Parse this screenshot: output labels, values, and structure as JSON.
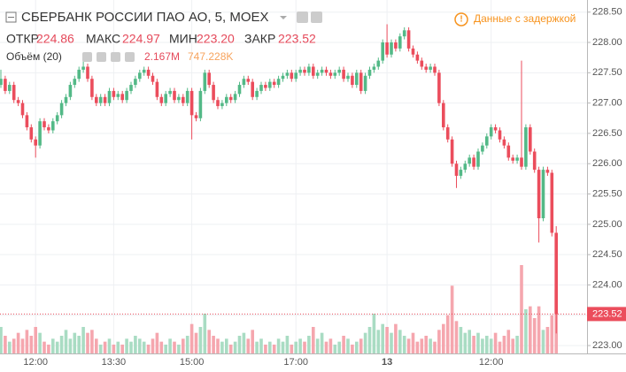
{
  "chart_data": {
    "type": "candlestick",
    "title": "СБЕРБАНК РОССИИ ПАО АО, 5, MOEX",
    "notice": "Данные с задержкой",
    "legend_labels": [
      "ОТКР",
      "МАКС",
      "МИН",
      "ЗАКР"
    ],
    "legend_values": [
      "224.86",
      "224.97",
      "223.20",
      "223.52"
    ],
    "volume_title": "Объём (20)",
    "volume_labels": [
      "2.167M",
      "747.228K"
    ],
    "up_color": "#53b987",
    "down_color": "#eb4d5c",
    "volume_up_color": "#a9dcc3",
    "volume_down_color": "#f5a6ae",
    "volume_ma_color": "#f7a35c",
    "ylim": [
      222.87,
      228.7
    ],
    "yticks": [
      {
        "value": 223,
        "label": "223.00"
      },
      {
        "value": 223.5,
        "label": "223.50"
      },
      {
        "value": 224,
        "label": "224.00"
      },
      {
        "value": 224.5,
        "label": "224.50"
      },
      {
        "value": 225,
        "label": "225.00"
      },
      {
        "value": 225.5,
        "label": "225.50"
      },
      {
        "value": 226,
        "label": "226.00"
      },
      {
        "value": 226.5,
        "label": "226.50"
      },
      {
        "value": 227,
        "label": "227.00"
      },
      {
        "value": 227.5,
        "label": "227.50"
      },
      {
        "value": 228,
        "label": "228.00"
      },
      {
        "value": 228.5,
        "label": "228.50"
      }
    ],
    "vlim": [
      0,
      12
    ],
    "grid": true,
    "categories": [
      null,
      null,
      null,
      null,
      null,
      null,
      null,
      null,
      "12:00",
      null,
      null,
      null,
      null,
      null,
      null,
      null,
      null,
      null,
      null,
      null,
      null,
      null,
      null,
      null,
      null,
      null,
      "13:30",
      null,
      null,
      null,
      null,
      null,
      null,
      null,
      null,
      null,
      null,
      null,
      null,
      null,
      null,
      null,
      null,
      null,
      "15:00",
      null,
      null,
      null,
      null,
      null,
      null,
      null,
      null,
      null,
      null,
      null,
      null,
      null,
      null,
      null,
      null,
      null,
      null,
      null,
      null,
      null,
      null,
      null,
      "17:00",
      null,
      null,
      null,
      null,
      null,
      null,
      null,
      null,
      null,
      null,
      null,
      null,
      null,
      null,
      null,
      null,
      null,
      null,
      null,
      null,
      "13",
      null,
      null,
      null,
      null,
      null,
      null,
      null,
      null,
      null,
      null,
      null,
      null,
      null,
      null,
      null,
      null,
      null,
      null,
      null,
      null,
      null,
      null,
      null,
      "12:00",
      null,
      null,
      null,
      null,
      null,
      null,
      null,
      null,
      null,
      null,
      null,
      null,
      null,
      null,
      null
    ],
    "open": [
      227.3,
      227.4,
      227.2,
      227.3,
      227.05,
      227,
      226.8,
      226.6,
      226.4,
      226.3,
      226.7,
      226.6,
      226.55,
      226.7,
      226.8,
      227,
      227.1,
      227.3,
      227.4,
      227.55,
      227.6,
      227.4,
      227.1,
      227,
      227.1,
      227,
      227.2,
      227.1,
      227.15,
      227.05,
      227.2,
      227.3,
      227.4,
      227.5,
      227.55,
      227.45,
      227.35,
      227.1,
      227,
      227.15,
      227.2,
      227.05,
      227.1,
      227,
      227.2,
      226.8,
      226.75,
      227.2,
      227.5,
      227.3,
      227.05,
      226.95,
      227,
      227.1,
      227.05,
      227.15,
      227.3,
      227.4,
      227.35,
      227.1,
      227.2,
      227.3,
      227.25,
      227.35,
      227.3,
      227.4,
      227.45,
      227.5,
      227.4,
      227.5,
      227.55,
      227.5,
      227.6,
      227.45,
      227.5,
      227.55,
      227.5,
      227.45,
      227.5,
      227.55,
      227.4,
      227.45,
      227.3,
      227.5,
      227.2,
      227.45,
      227.55,
      227.6,
      227.7,
      228,
      227.8,
      228,
      227.9,
      228.1,
      228.2,
      227.9,
      227.8,
      227.7,
      227.6,
      227.55,
      227.6,
      227.5,
      227,
      226.6,
      226.4,
      226,
      225.8,
      225.9,
      226,
      226.1,
      225.95,
      226.2,
      226.3,
      226.45,
      226.6,
      226.55,
      226.4,
      226.3,
      226.1,
      226.05,
      226.1,
      225.95,
      226.6,
      226.2,
      225.9,
      225.1,
      225.9,
      225.85,
      224.86
    ],
    "high": [
      227.55,
      227.45,
      227.35,
      227.35,
      227.1,
      227.05,
      226.85,
      226.65,
      226.45,
      226.75,
      226.75,
      226.65,
      226.75,
      226.85,
      227.05,
      227.15,
      227.35,
      227.45,
      227.6,
      227.7,
      227.65,
      227.45,
      227.15,
      227.15,
      227.15,
      227.25,
      227.25,
      227.2,
      227.2,
      227.25,
      227.35,
      227.45,
      227.55,
      227.6,
      227.6,
      227.5,
      227.4,
      227.15,
      227.2,
      227.25,
      227.25,
      227.15,
      227.15,
      227.25,
      227.25,
      226.85,
      227.25,
      227.55,
      227.55,
      227.35,
      227.1,
      227.05,
      227.15,
      227.15,
      227.2,
      227.35,
      227.45,
      227.45,
      227.4,
      227.25,
      227.35,
      227.35,
      227.4,
      227.4,
      227.45,
      227.5,
      227.55,
      227.55,
      227.55,
      227.6,
      227.6,
      227.65,
      227.65,
      227.55,
      227.6,
      227.6,
      227.55,
      227.55,
      227.6,
      227.6,
      227.5,
      227.5,
      227.55,
      227.55,
      227.5,
      227.6,
      227.65,
      227.75,
      228.05,
      228.3,
      228.05,
      228.05,
      228.15,
      228.25,
      228.25,
      227.95,
      227.85,
      227.75,
      227.65,
      227.65,
      227.65,
      227.55,
      227.05,
      226.65,
      226.45,
      226.05,
      225.95,
      226.05,
      226.15,
      226.15,
      226.25,
      226.35,
      226.5,
      226.65,
      226.65,
      226.6,
      226.45,
      226.35,
      226.15,
      226.15,
      227.7,
      226.65,
      226.65,
      226.25,
      225.95,
      225.95,
      225.95,
      225.9,
      224.97
    ],
    "low": [
      227.25,
      227.15,
      227.15,
      227,
      226.95,
      226.75,
      226.55,
      226.35,
      226.1,
      226.25,
      226.55,
      226.5,
      226.5,
      226.65,
      226.75,
      226.95,
      227.05,
      227.25,
      227.35,
      227.5,
      227.35,
      227.05,
      226.95,
      226.95,
      226.95,
      226.95,
      227.05,
      227.05,
      227,
      227,
      227.15,
      227.25,
      227.35,
      227.45,
      227.4,
      227.3,
      227.05,
      226.95,
      226.95,
      227.1,
      227,
      227,
      226.95,
      226.95,
      226.4,
      226.7,
      226.7,
      227.15,
      227.25,
      227,
      226.9,
      226.9,
      226.95,
      227,
      227,
      227.1,
      227.25,
      227.3,
      227.05,
      227.05,
      227.15,
      227.2,
      227.2,
      227.25,
      227.25,
      227.35,
      227.4,
      227.35,
      227.35,
      227.45,
      227.45,
      227.45,
      227.4,
      227.4,
      227.45,
      227.45,
      227.4,
      227.4,
      227.45,
      227.35,
      227.35,
      227.25,
      227.25,
      227.15,
      227.15,
      227.4,
      227.5,
      227.55,
      227.65,
      227.75,
      227.75,
      227.85,
      227.85,
      228.05,
      227.85,
      227.75,
      227.65,
      227.55,
      227.5,
      227.5,
      227.45,
      226.95,
      226.55,
      226.35,
      225.95,
      225.6,
      225.75,
      225.85,
      225.95,
      225.9,
      225.9,
      226.15,
      226.25,
      226.4,
      226.5,
      226.35,
      226.25,
      226.05,
      226,
      226,
      225.9,
      225.9,
      226.15,
      225.85,
      224.7,
      225.05,
      225.8,
      224.8,
      223.2
    ],
    "close": [
      227.4,
      227.2,
      227.3,
      227.05,
      227,
      226.8,
      226.6,
      226.4,
      226.3,
      226.7,
      226.6,
      226.55,
      226.7,
      226.8,
      227,
      227.1,
      227.3,
      227.4,
      227.55,
      227.6,
      227.4,
      227.1,
      227,
      227.1,
      227,
      227.2,
      227.1,
      227.15,
      227.05,
      227.2,
      227.3,
      227.4,
      227.5,
      227.55,
      227.45,
      227.35,
      227.1,
      227,
      227.15,
      227.2,
      227.05,
      227.1,
      227,
      227.2,
      226.8,
      226.75,
      227.2,
      227.5,
      227.3,
      227.05,
      226.95,
      227,
      227.1,
      227.05,
      227.15,
      227.3,
      227.4,
      227.35,
      227.1,
      227.2,
      227.3,
      227.25,
      227.35,
      227.3,
      227.4,
      227.45,
      227.5,
      227.4,
      227.5,
      227.55,
      227.5,
      227.6,
      227.45,
      227.5,
      227.55,
      227.5,
      227.45,
      227.5,
      227.55,
      227.4,
      227.45,
      227.3,
      227.5,
      227.2,
      227.45,
      227.55,
      227.6,
      227.7,
      228,
      227.8,
      228,
      227.9,
      228.1,
      228.2,
      227.9,
      227.8,
      227.7,
      227.6,
      227.55,
      227.6,
      227.5,
      227,
      226.6,
      226.4,
      226,
      225.8,
      225.9,
      226,
      226.1,
      225.95,
      226.2,
      226.3,
      226.45,
      226.6,
      226.55,
      226.4,
      226.3,
      226.1,
      226.05,
      226.1,
      225.95,
      226.6,
      226.2,
      225.9,
      225.1,
      225.9,
      225.85,
      224.86,
      223.52
    ],
    "volume": [
      0.9,
      0.6,
      0.4,
      0.5,
      0.7,
      0.5,
      0.8,
      0.6,
      0.9,
      0.7,
      0.4,
      0.3,
      0.5,
      0.4,
      0.6,
      0.8,
      0.5,
      0.7,
      0.6,
      0.9,
      0.7,
      0.8,
      0.5,
      0.3,
      0.4,
      0.5,
      0.3,
      0.4,
      0.3,
      0.5,
      0.4,
      0.6,
      0.5,
      0.4,
      0.3,
      0.5,
      0.7,
      0.4,
      0.3,
      0.5,
      0.4,
      0.3,
      0.5,
      0.6,
      1.0,
      0.7,
      0.9,
      1.35,
      0.8,
      0.6,
      0.5,
      0.4,
      0.5,
      0.3,
      0.4,
      0.6,
      0.7,
      0.5,
      0.8,
      0.4,
      0.5,
      0.3,
      0.4,
      0.3,
      0.5,
      0.4,
      0.6,
      0.3,
      0.4,
      0.5,
      0.4,
      0.6,
      0.9,
      0.5,
      0.7,
      0.4,
      0.5,
      0.3,
      0.4,
      0.6,
      0.5,
      0.3,
      0.4,
      0.5,
      0.7,
      0.9,
      1.35,
      0.8,
      1.0,
      0.9,
      0.7,
      1.0,
      0.8,
      0.6,
      0.5,
      0.7,
      0.4,
      0.5,
      0.6,
      0.5,
      0.4,
      0.8,
      1.0,
      1.3,
      2.3,
      1.1,
      0.9,
      0.7,
      0.8,
      0.6,
      0.7,
      0.5,
      0.6,
      0.5,
      0.7,
      0.4,
      0.6,
      0.8,
      0.5,
      0.6,
      3.0,
      1.5,
      1.6,
      1.2,
      1.6,
      0.8,
      0.9,
      1.3,
      2.167
    ]
  }
}
